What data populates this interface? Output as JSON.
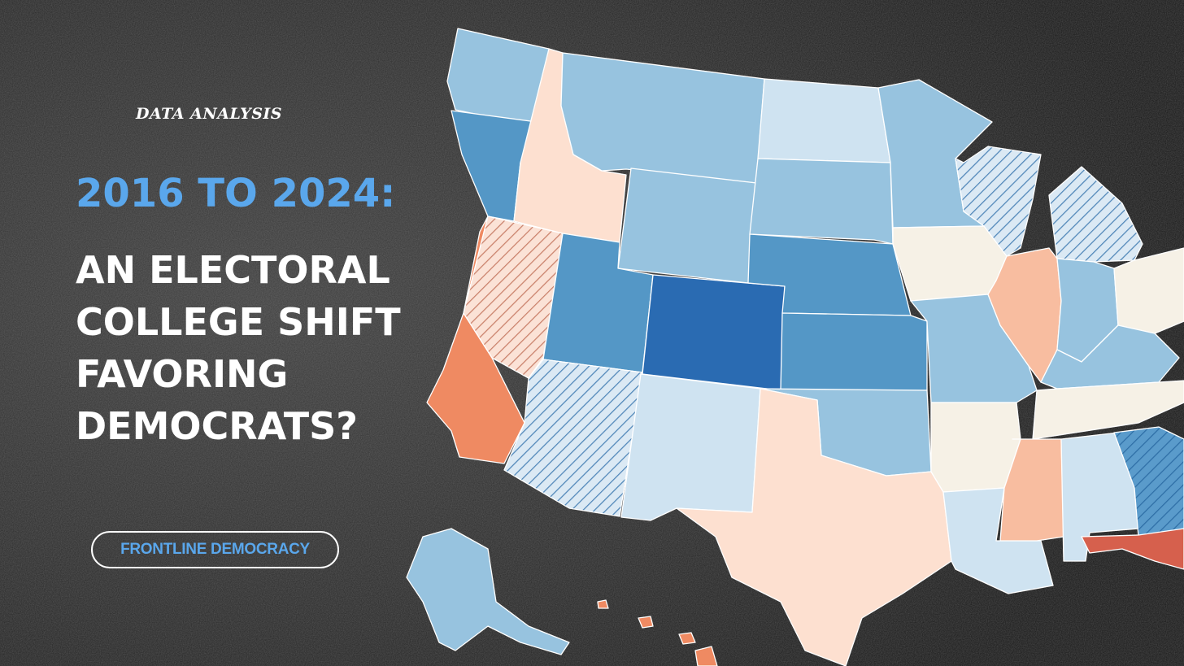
{
  "header": {
    "kicker": "DATA ANALYSIS",
    "subtitle": "2016 TO 2024:",
    "title_lines": [
      "AN ELECTORAL",
      "COLLEGE SHIFT",
      "FAVORING",
      "DEMOCRATS?"
    ]
  },
  "badge": {
    "label": "FRONTLINE DEMOCRACY"
  },
  "colors": {
    "background": "#2a2a2a",
    "subtitle_accent": "#5aa7ec",
    "dem_shift_strong": "#2a6bb2",
    "dem_shift_medium": "#5497c6",
    "dem_shift_light": "#97c3df",
    "dem_shift_faint": "#cfe3f1",
    "neutral": "#f6f1e6",
    "rep_shift_faint": "#fde0d0",
    "rep_shift_light": "#f8bda0",
    "rep_shift_medium": "#ef8a62",
    "rep_shift_strong": "#d6604d"
  },
  "map": {
    "states": [
      {
        "name": "Washington",
        "shift": "dem_shift_light"
      },
      {
        "name": "Oregon",
        "shift": "dem_shift_medium"
      },
      {
        "name": "California",
        "shift": "rep_shift_medium"
      },
      {
        "name": "Nevada",
        "shift": "rep_shift_light",
        "hatched": true
      },
      {
        "name": "Idaho",
        "shift": "rep_shift_faint"
      },
      {
        "name": "Montana",
        "shift": "dem_shift_light"
      },
      {
        "name": "Wyoming",
        "shift": "dem_shift_light"
      },
      {
        "name": "Utah",
        "shift": "dem_shift_medium"
      },
      {
        "name": "Arizona",
        "shift": "dem_shift_faint",
        "hatched": true
      },
      {
        "name": "Colorado",
        "shift": "dem_shift_strong"
      },
      {
        "name": "New Mexico",
        "shift": "dem_shift_faint"
      },
      {
        "name": "North Dakota",
        "shift": "dem_shift_faint"
      },
      {
        "name": "South Dakota",
        "shift": "dem_shift_light"
      },
      {
        "name": "Nebraska",
        "shift": "dem_shift_medium"
      },
      {
        "name": "Kansas",
        "shift": "dem_shift_medium"
      },
      {
        "name": "Oklahoma",
        "shift": "dem_shift_light"
      },
      {
        "name": "Texas",
        "shift": "rep_shift_faint"
      },
      {
        "name": "Minnesota",
        "shift": "dem_shift_light"
      },
      {
        "name": "Iowa",
        "shift": "neutral"
      },
      {
        "name": "Missouri",
        "shift": "dem_shift_light"
      },
      {
        "name": "Arkansas",
        "shift": "neutral"
      },
      {
        "name": "Louisiana",
        "shift": "dem_shift_faint"
      },
      {
        "name": "Wisconsin",
        "shift": "dem_shift_faint",
        "hatched": true
      },
      {
        "name": "Michigan",
        "shift": "dem_shift_faint",
        "hatched": true
      },
      {
        "name": "Illinois",
        "shift": "rep_shift_light"
      },
      {
        "name": "Indiana",
        "shift": "dem_shift_light"
      },
      {
        "name": "Ohio",
        "shift": "neutral"
      },
      {
        "name": "Kentucky",
        "shift": "dem_shift_light"
      },
      {
        "name": "Tennessee",
        "shift": "neutral"
      },
      {
        "name": "Mississippi",
        "shift": "rep_shift_light"
      },
      {
        "name": "Alabama",
        "shift": "dem_shift_faint"
      },
      {
        "name": "Georgia",
        "shift": "dem_shift_medium",
        "hatched": true
      },
      {
        "name": "Florida",
        "shift": "rep_shift_strong"
      },
      {
        "name": "Alaska",
        "shift": "dem_shift_light"
      },
      {
        "name": "Hawaii",
        "shift": "rep_shift_medium"
      }
    ]
  }
}
